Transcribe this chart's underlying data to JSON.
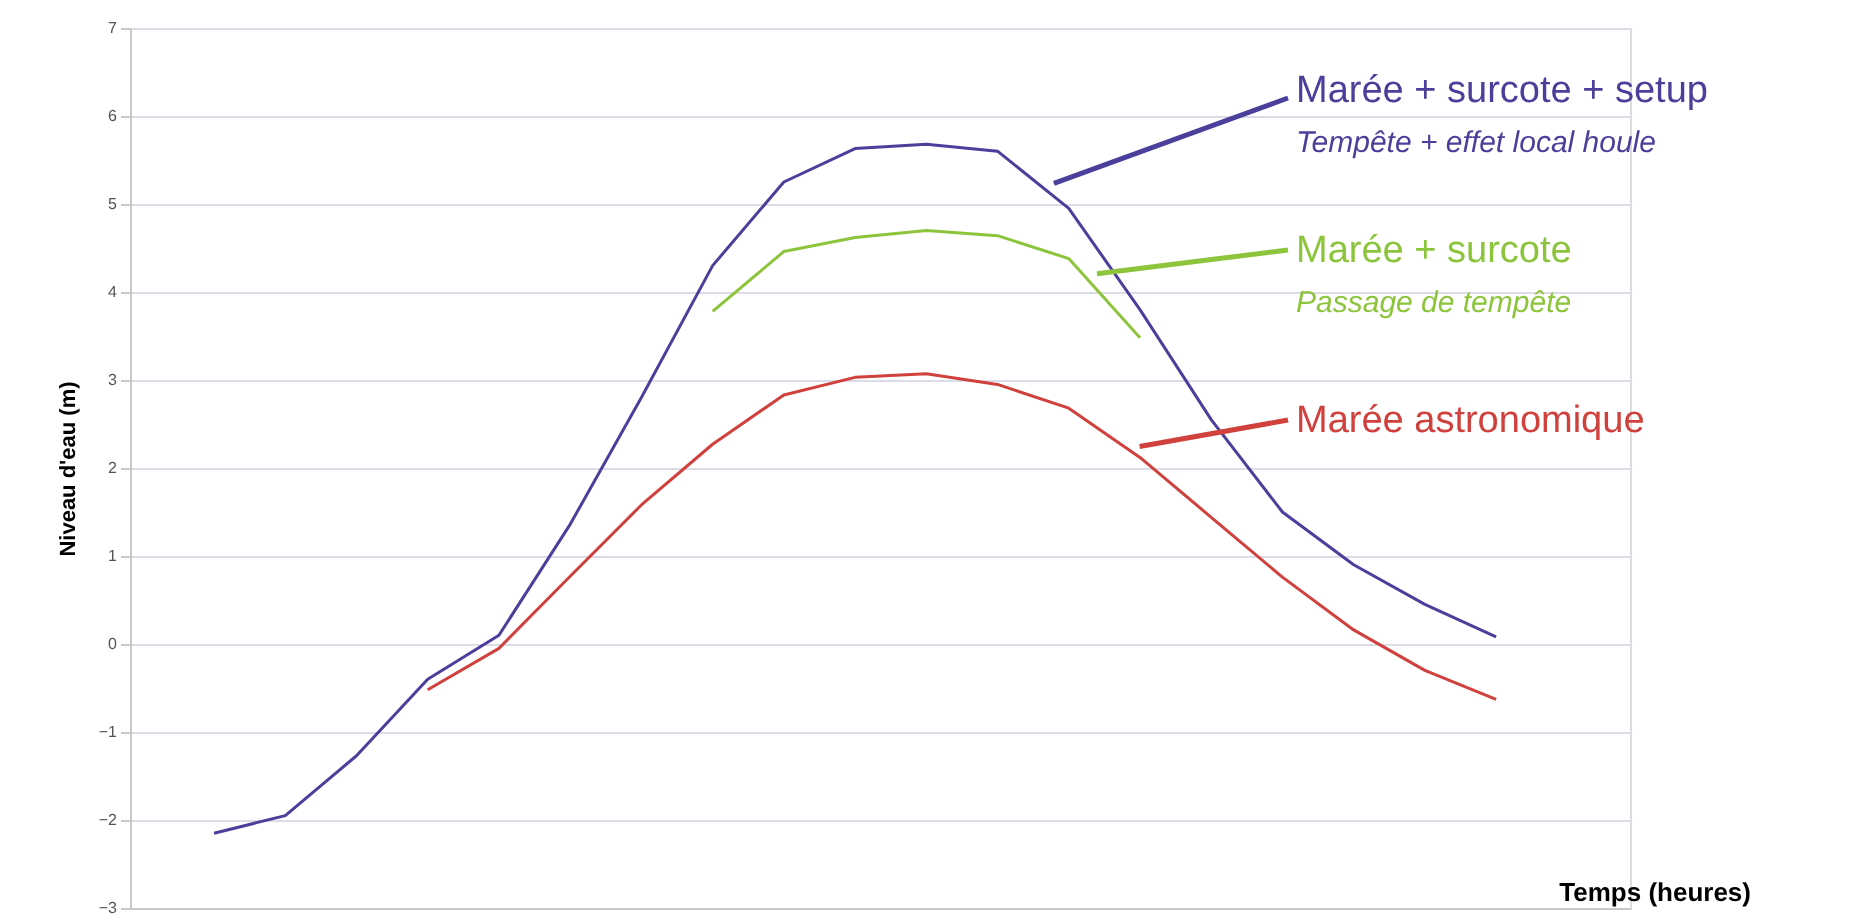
{
  "chart_data": {
    "type": "line",
    "xlabel": "Temps (heures)",
    "ylabel": "Niveau d'eau (m)",
    "categories": [
      null,
      null,
      null,
      null,
      null,
      null,
      null,
      null,
      null,
      null,
      null,
      null,
      null,
      null,
      null,
      null,
      null,
      null,
      null
    ],
    "series": [
      {
        "name": "Marée + surcote + setup",
        "color": "#4b3f9c",
        "values": [
          -2.15,
          -1.95,
          -1.27,
          -0.4,
          0.1,
          1.36,
          2.8,
          4.3,
          5.25,
          5.63,
          5.68,
          5.6,
          4.95,
          3.8,
          2.55,
          1.5,
          0.9,
          0.45,
          0.08
        ]
      },
      {
        "name": "Marée + surcote",
        "color": "#8cc43c",
        "values": [
          null,
          null,
          null,
          null,
          null,
          null,
          null,
          3.78,
          4.46,
          4.62,
          4.7,
          4.64,
          4.38,
          3.48,
          null,
          null,
          null,
          null,
          null
        ]
      },
      {
        "name": "Marée astronomique",
        "color": "#d0403c",
        "values": [
          null,
          null,
          null,
          -0.52,
          -0.05,
          0.77,
          1.58,
          2.27,
          2.83,
          3.03,
          3.07,
          2.95,
          2.68,
          2.12,
          1.44,
          0.76,
          0.16,
          -0.3,
          -0.63
        ]
      }
    ],
    "annotations": [
      "Tempête + effet local houle",
      "Passage de tempête"
    ],
    "ylim": [
      -3,
      7
    ],
    "yticks": [
      -3,
      -2,
      -1,
      0,
      1,
      2,
      3,
      4,
      5,
      6,
      7
    ],
    "grid": "y",
    "tick_labels": "y",
    "legend": "top right",
    "line_style": "solid"
  }
}
